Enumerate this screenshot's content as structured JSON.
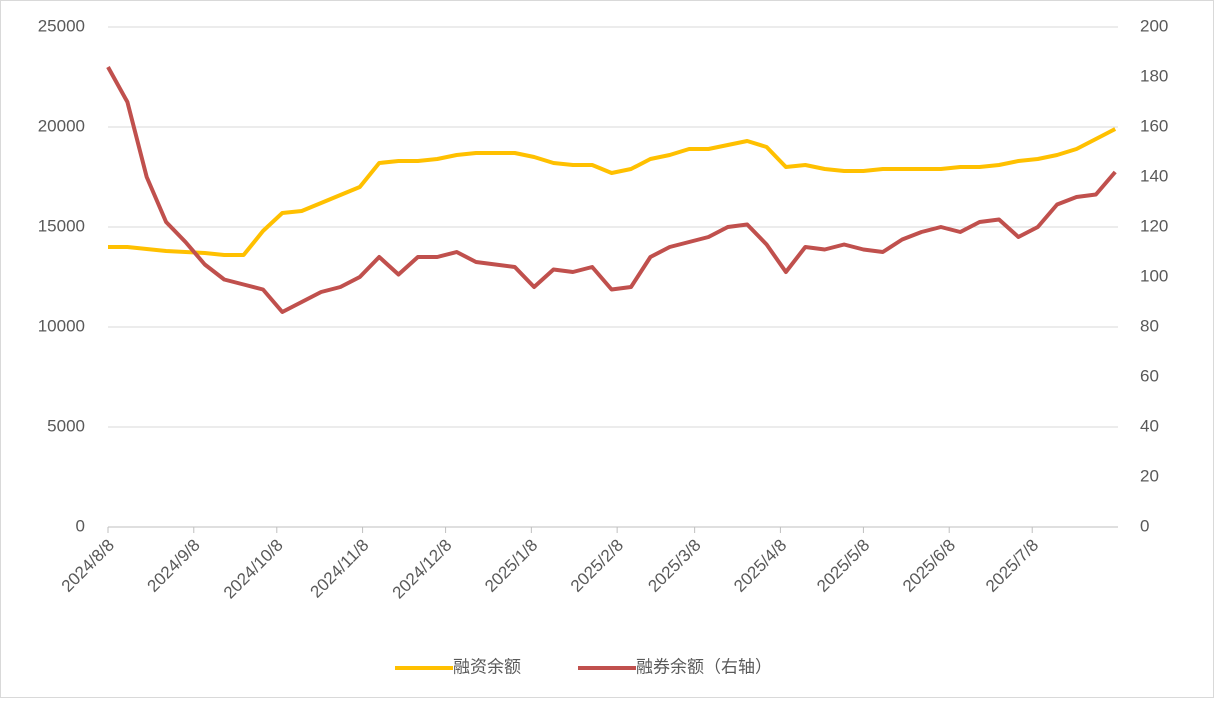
{
  "chart_data": {
    "type": "line",
    "x": [
      "2024/8/8",
      "2024/8/15",
      "2024/8/22",
      "2024/8/29",
      "2024/9/5",
      "2024/9/12",
      "2024/9/19",
      "2024/9/26",
      "2024/10/3",
      "2024/10/10",
      "2024/10/17",
      "2024/10/24",
      "2024/10/31",
      "2024/11/7",
      "2024/11/14",
      "2024/11/21",
      "2024/11/28",
      "2024/12/5",
      "2024/12/12",
      "2024/12/19",
      "2024/12/26",
      "2025/1/2",
      "2025/1/9",
      "2025/1/16",
      "2025/1/23",
      "2025/1/30",
      "2025/2/6",
      "2025/2/13",
      "2025/2/20",
      "2025/2/27",
      "2025/3/6",
      "2025/3/13",
      "2025/3/20",
      "2025/3/27",
      "2025/4/3",
      "2025/4/10",
      "2025/4/17",
      "2025/4/24",
      "2025/5/1",
      "2025/5/8",
      "2025/5/15",
      "2025/5/22",
      "2025/5/29",
      "2025/6/5",
      "2025/6/12",
      "2025/6/19",
      "2025/6/26",
      "2025/7/3",
      "2025/7/10",
      "2025/7/17",
      "2025/7/24",
      "2025/7/31",
      "2025/8/7"
    ],
    "series": [
      {
        "name": "融资余额",
        "color": "#ffc000",
        "values": [
          14000,
          14000,
          13900,
          13800,
          13750,
          13700,
          13600,
          13600,
          14800,
          15700,
          15800,
          16200,
          16600,
          17000,
          18200,
          18300,
          18300,
          18400,
          18600,
          18700,
          18700,
          18700,
          18500,
          18200,
          18100,
          18100,
          17700,
          17900,
          18400,
          18600,
          18900,
          18900,
          19100,
          19300,
          19000,
          18000,
          18100,
          17900,
          17800,
          17800,
          17900,
          17900,
          17900,
          17900,
          18000,
          18000,
          18100,
          18300,
          18400,
          18600,
          18900,
          19400,
          19900
        ]
      },
      {
        "name": "融券余额（右轴）",
        "color": "#c0504d",
        "axis": "y2",
        "values": [
          184,
          170,
          140,
          122,
          114,
          105,
          99,
          97,
          95,
          86,
          90,
          94,
          96,
          100,
          108,
          101,
          108,
          108,
          110,
          106,
          105,
          104,
          96,
          103,
          102,
          104,
          95,
          96,
          108,
          112,
          114,
          116,
          120,
          121,
          113,
          102,
          112,
          111,
          113,
          111,
          110,
          115,
          118,
          120,
          118,
          122,
          123,
          116,
          120,
          129,
          132,
          133,
          142
        ]
      }
    ],
    "xlim": [
      "2024/8/8",
      "2025/8/8"
    ],
    "xticks": [
      "2024/8/8",
      "2024/9/8",
      "2024/10/8",
      "2024/11/8",
      "2024/12/8",
      "2025/1/8",
      "2025/2/8",
      "2025/3/8",
      "2025/4/8",
      "2025/5/8",
      "2025/6/8",
      "2025/7/8"
    ],
    "ylim": [
      0,
      25000
    ],
    "yticks": [
      0,
      5000,
      10000,
      15000,
      20000,
      25000
    ],
    "y2lim": [
      0,
      200
    ],
    "y2ticks": [
      0,
      20,
      40,
      60,
      80,
      100,
      120,
      140,
      160,
      180,
      200
    ],
    "grid": true,
    "legend": "bottom"
  }
}
